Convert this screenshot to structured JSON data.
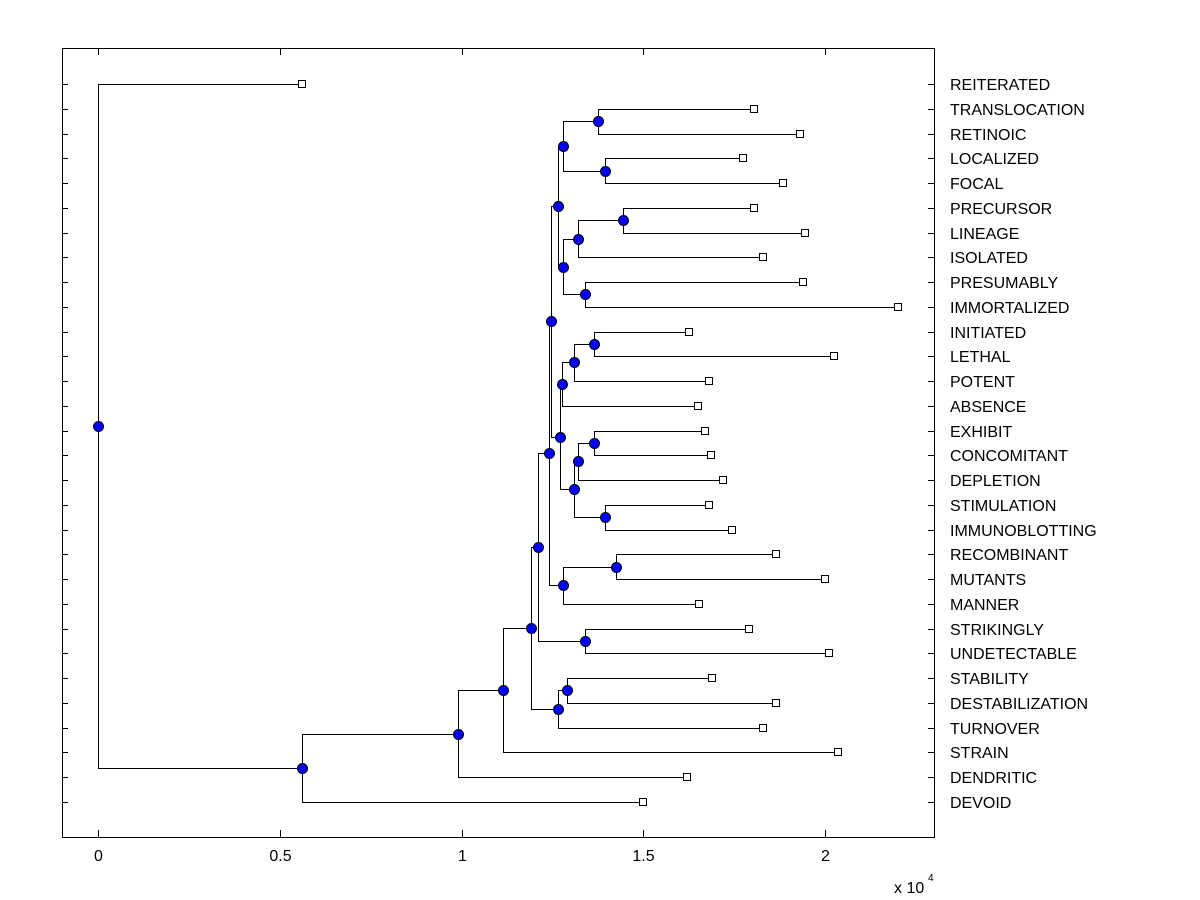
{
  "chart_data": {
    "type": "dendrogram",
    "xlim": [
      -0.1,
      2.3
    ],
    "x_scale_exponent_label": "x 10",
    "x_scale_exponent": "4",
    "xticks": [
      {
        "value": 0,
        "label": "0"
      },
      {
        "value": 0.5,
        "label": "0.5"
      },
      {
        "value": 1,
        "label": "1"
      },
      {
        "value": 1.5,
        "label": "1.5"
      },
      {
        "value": 2,
        "label": "2"
      }
    ],
    "leaves": [
      {
        "label": "REITERATED",
        "x": 0.56
      },
      {
        "label": "TRANSLOCATION",
        "x": 1.805
      },
      {
        "label": "RETINOIC",
        "x": 1.93
      },
      {
        "label": "LOCALIZED",
        "x": 1.775
      },
      {
        "label": "FOCAL",
        "x": 1.885
      },
      {
        "label": "PRECURSOR",
        "x": 1.805
      },
      {
        "label": "LINEAGE",
        "x": 1.945
      },
      {
        "label": "ISOLATED",
        "x": 1.83
      },
      {
        "label": "PRESUMABLY",
        "x": 1.94
      },
      {
        "label": "IMMORTALIZED",
        "x": 2.2
      },
      {
        "label": "INITIATED",
        "x": 1.625
      },
      {
        "label": "LETHAL",
        "x": 2.025
      },
      {
        "label": "POTENT",
        "x": 1.68
      },
      {
        "label": "ABSENCE",
        "x": 1.65
      },
      {
        "label": "EXHIBIT",
        "x": 1.67
      },
      {
        "label": "CONCOMITANT",
        "x": 1.685
      },
      {
        "label": "DEPLETION",
        "x": 1.72
      },
      {
        "label": "STIMULATION",
        "x": 1.68
      },
      {
        "label": "IMMUNOBLOTTING",
        "x": 1.745
      },
      {
        "label": "RECOMBINANT",
        "x": 1.865
      },
      {
        "label": "MUTANTS",
        "x": 2.0
      },
      {
        "label": "MANNER",
        "x": 1.652
      },
      {
        "label": "STRIKINGLY",
        "x": 1.79
      },
      {
        "label": "UNDETECTABLE",
        "x": 2.01
      },
      {
        "label": "STABILITY",
        "x": 1.69
      },
      {
        "label": "DESTABILIZATION",
        "x": 1.865
      },
      {
        "label": "TURNOVER",
        "x": 1.83
      },
      {
        "label": "STRAIN",
        "x": 2.035
      },
      {
        "label": "DENDRITIC",
        "x": 1.62
      },
      {
        "label": "DEVOID",
        "x": 1.5
      }
    ],
    "internal_nodes": [
      {
        "id": "n1",
        "x": 1.375,
        "children": [
          "L1",
          "L2"
        ]
      },
      {
        "id": "n2",
        "x": 1.395,
        "children": [
          "L3",
          "L4"
        ]
      },
      {
        "id": "n3",
        "x": 1.28,
        "children": [
          "n1",
          "n2"
        ]
      },
      {
        "id": "n4",
        "x": 1.445,
        "children": [
          "L5",
          "L6"
        ]
      },
      {
        "id": "n5",
        "x": 1.32,
        "children": [
          "n4",
          "L7"
        ]
      },
      {
        "id": "n6",
        "x": 1.34,
        "children": [
          "L8",
          "L9"
        ]
      },
      {
        "id": "n7",
        "x": 1.28,
        "children": [
          "n5",
          "n6"
        ]
      },
      {
        "id": "n8",
        "x": 1.265,
        "children": [
          "n3",
          "n7"
        ]
      },
      {
        "id": "n9",
        "x": 1.365,
        "children": [
          "L10",
          "L11"
        ]
      },
      {
        "id": "n10",
        "x": 1.31,
        "children": [
          "n9",
          "L12"
        ]
      },
      {
        "id": "n11",
        "x": 1.275,
        "children": [
          "n10",
          "L13"
        ]
      },
      {
        "id": "n12",
        "x": 1.365,
        "children": [
          "L14",
          "L15"
        ]
      },
      {
        "id": "n13",
        "x": 1.32,
        "children": [
          "n12",
          "L16"
        ]
      },
      {
        "id": "n14",
        "x": 1.395,
        "children": [
          "L17",
          "L18"
        ]
      },
      {
        "id": "n15",
        "x": 1.31,
        "children": [
          "n13",
          "n14"
        ]
      },
      {
        "id": "n16",
        "x": 1.27,
        "children": [
          "n11",
          "n15"
        ]
      },
      {
        "id": "n17",
        "x": 1.245,
        "children": [
          "n8",
          "n16"
        ]
      },
      {
        "id": "n18",
        "x": 1.425,
        "children": [
          "L19",
          "L20"
        ]
      },
      {
        "id": "n19",
        "x": 1.28,
        "children": [
          "n18",
          "L21"
        ]
      },
      {
        "id": "n20",
        "x": 1.24,
        "children": [
          "n17",
          "n19"
        ]
      },
      {
        "id": "n21",
        "x": 1.34,
        "children": [
          "L22",
          "L23"
        ]
      },
      {
        "id": "n22",
        "x": 1.21,
        "children": [
          "n20",
          "n21"
        ]
      },
      {
        "id": "n23",
        "x": 1.29,
        "children": [
          "L24",
          "L25"
        ]
      },
      {
        "id": "n24",
        "x": 1.265,
        "children": [
          "n23",
          "L26"
        ]
      },
      {
        "id": "n25",
        "x": 1.19,
        "children": [
          "n22",
          "n24"
        ]
      },
      {
        "id": "n26",
        "x": 1.115,
        "children": [
          "n25",
          "L27"
        ]
      },
      {
        "id": "n27",
        "x": 0.99,
        "children": [
          "n26",
          "L28"
        ]
      },
      {
        "id": "n28",
        "x": 0.56,
        "children": [
          "n27",
          "L29"
        ]
      },
      {
        "id": "n29",
        "x": 0.0,
        "children": [
          "L0",
          "n28"
        ]
      }
    ]
  }
}
